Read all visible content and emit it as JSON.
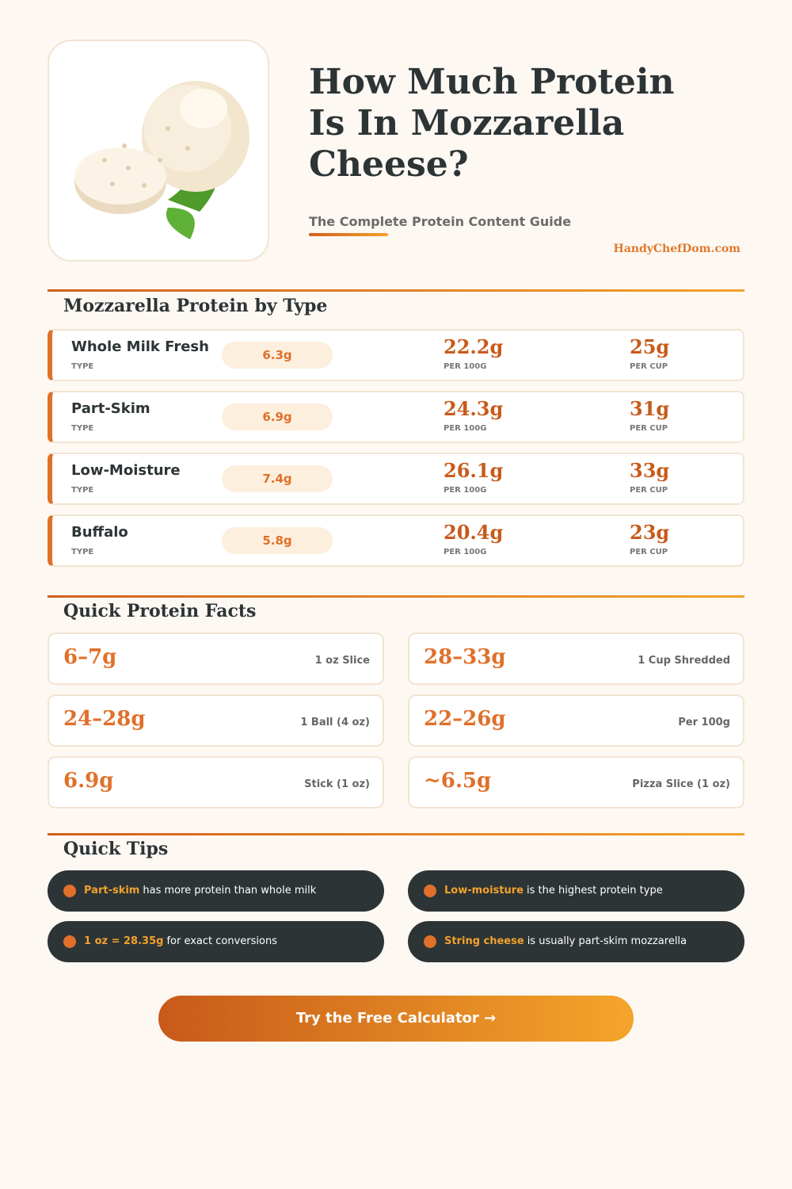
{
  "header": {
    "title": "How Much Protein Is In Mozzarella Cheese?",
    "subtitle": "The Complete Protein Content Guide",
    "site": "HandyChefDom.com"
  },
  "types": {
    "heading": "Mozzarella Protein by Type",
    "rows": [
      {
        "name": "Whole Milk Fresh",
        "type_label": "TYPE",
        "per_oz": "6.3g",
        "per_100g": "22.2g",
        "per_100g_label": "PER 100G",
        "per_cup": "25g",
        "per_cup_label": "PER CUP"
      },
      {
        "name": "Part-Skim",
        "type_label": "TYPE",
        "per_oz": "6.9g",
        "per_100g": "24.3g",
        "per_100g_label": "PER 100G",
        "per_cup": "31g",
        "per_cup_label": "PER CUP"
      },
      {
        "name": "Low-Moisture",
        "type_label": "TYPE",
        "per_oz": "7.4g",
        "per_100g": "26.1g",
        "per_100g_label": "PER 100G",
        "per_cup": "33g",
        "per_cup_label": "PER CUP"
      },
      {
        "name": "Buffalo",
        "type_label": "TYPE",
        "per_oz": "5.8g",
        "per_100g": "20.4g",
        "per_100g_label": "PER 100G",
        "per_cup": "23g",
        "per_cup_label": "PER CUP"
      }
    ]
  },
  "facts": {
    "heading": "Quick Protein Facts",
    "items": [
      {
        "value": "6–7g",
        "label": "1 oz Slice"
      },
      {
        "value": "28–33g",
        "label": "1 Cup Shredded"
      },
      {
        "value": "24–28g",
        "label": "1 Ball (4 oz)"
      },
      {
        "value": "22–26g",
        "label": "Per 100g"
      },
      {
        "value": "6.9g",
        "label": "Stick (1 oz)"
      },
      {
        "value": "~6.5g",
        "label": "Pizza Slice (1 oz)"
      }
    ]
  },
  "tips": {
    "heading": "Quick Tips",
    "items": [
      {
        "highlight": "Part-skim",
        "text": "has more protein than whole milk"
      },
      {
        "highlight": "Low-moisture",
        "text": "is the highest protein type"
      },
      {
        "highlight": "1 oz = 28.35g",
        "text": "for exact conversions"
      },
      {
        "highlight": "String cheese",
        "text": "is usually part-skim mozzarella"
      }
    ]
  },
  "cta": "Try the Free Calculator →"
}
